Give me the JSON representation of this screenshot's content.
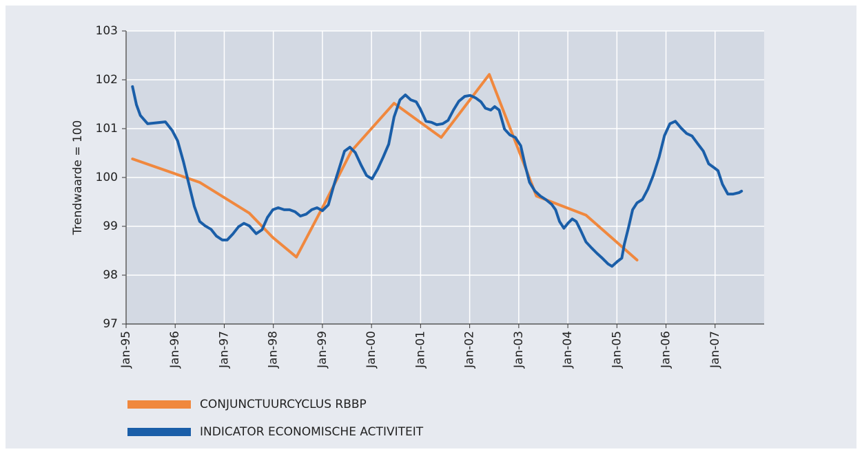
{
  "chart_data": {
    "type": "line",
    "ylabel": "Trendwaarde = 100",
    "xlim": [
      1995,
      2008
    ],
    "xticks": [
      {
        "value": 1995,
        "label": "Jan-95"
      },
      {
        "value": 1996,
        "label": "Jan-96"
      },
      {
        "value": 1997,
        "label": "Jan-97"
      },
      {
        "value": 1998,
        "label": "Jan-98"
      },
      {
        "value": 1999,
        "label": "Jan-99"
      },
      {
        "value": 2000,
        "label": "Jan-00"
      },
      {
        "value": 2001,
        "label": "Jan-01"
      },
      {
        "value": 2002,
        "label": "Jan-02"
      },
      {
        "value": 2003,
        "label": "Jan-03"
      },
      {
        "value": 2004,
        "label": "Jan-04"
      },
      {
        "value": 2005,
        "label": "Jan-05"
      },
      {
        "value": 2006,
        "label": "Jan-06"
      },
      {
        "value": 2007,
        "label": "Jan-07"
      }
    ],
    "ylim": [
      97,
      103
    ],
    "yticks": [
      97,
      98,
      99,
      100,
      101,
      102,
      103
    ],
    "grid": true,
    "legend": "bottom",
    "series": [
      {
        "name": "CONJUNCTUURCYCLUS RBBP",
        "color": "#f0883e",
        "x": [
          1995.13,
          1996.5,
          1997.51,
          1997.99,
          1998.47,
          1999.03,
          1999.59,
          2000.46,
          2001.42,
          2002.4,
          2003.36,
          2004.37,
          2005.41
        ],
        "values": [
          100.38,
          99.9,
          99.27,
          98.77,
          98.37,
          99.44,
          100.54,
          101.52,
          100.82,
          102.11,
          99.62,
          99.23,
          98.31
        ]
      },
      {
        "name": "INDICATOR ECONOMISCHE ACTIVITEIT",
        "color": "#1a5ea8",
        "x": [
          1995.13,
          1995.21,
          1995.29,
          1995.44,
          1995.8,
          1995.94,
          1996.05,
          1996.17,
          1996.28,
          1996.39,
          1996.5,
          1996.61,
          1996.73,
          1996.84,
          1996.96,
          1997.06,
          1997.18,
          1997.29,
          1997.4,
          1997.51,
          1997.65,
          1997.77,
          1997.88,
          1997.99,
          1998.1,
          1998.22,
          1998.33,
          1998.44,
          1998.55,
          1998.67,
          1998.78,
          1998.89,
          1999.0,
          1999.12,
          1999.23,
          1999.34,
          1999.45,
          1999.56,
          1999.67,
          1999.79,
          1999.9,
          2000.01,
          2000.13,
          2000.24,
          2000.35,
          2000.46,
          2000.58,
          2000.69,
          2000.8,
          2000.91,
          2000.99,
          2001.11,
          2001.22,
          2001.33,
          2001.45,
          2001.56,
          2001.67,
          2001.78,
          2001.9,
          2002.01,
          2002.12,
          2002.23,
          2002.32,
          2002.43,
          2002.51,
          2002.6,
          2002.71,
          2002.82,
          2002.93,
          2003.04,
          2003.13,
          2003.22,
          2003.33,
          2003.44,
          2003.55,
          2003.67,
          2003.75,
          2003.83,
          2003.92,
          2004.0,
          2004.09,
          2004.17,
          2004.26,
          2004.37,
          2004.48,
          2004.59,
          2004.71,
          2004.82,
          2004.9,
          2005.01,
          2005.1,
          2005.15,
          2005.24,
          2005.32,
          2005.41,
          2005.52,
          2005.63,
          2005.74,
          2005.86,
          2005.97,
          2006.08,
          2006.19,
          2006.31,
          2006.42,
          2006.53,
          2006.64,
          2006.76,
          2006.87,
          2006.98,
          2007.06,
          2007.15,
          2007.26,
          2007.37,
          2007.49,
          2007.54
        ],
        "values": [
          101.86,
          101.49,
          101.27,
          101.1,
          101.14,
          100.96,
          100.75,
          100.32,
          99.86,
          99.41,
          99.1,
          99.01,
          98.94,
          98.8,
          98.72,
          98.72,
          98.85,
          98.99,
          99.06,
          99.01,
          98.85,
          98.93,
          99.18,
          99.34,
          99.38,
          99.34,
          99.34,
          99.3,
          99.21,
          99.25,
          99.34,
          99.38,
          99.32,
          99.44,
          99.83,
          100.18,
          100.54,
          100.62,
          100.51,
          100.25,
          100.04,
          99.97,
          100.18,
          100.42,
          100.68,
          101.24,
          101.59,
          101.69,
          101.59,
          101.55,
          101.41,
          101.15,
          101.13,
          101.08,
          101.1,
          101.17,
          101.38,
          101.56,
          101.66,
          101.68,
          101.63,
          101.55,
          101.42,
          101.38,
          101.45,
          101.38,
          100.99,
          100.87,
          100.82,
          100.65,
          100.25,
          99.9,
          99.72,
          99.62,
          99.55,
          99.45,
          99.34,
          99.1,
          98.96,
          99.06,
          99.15,
          99.1,
          98.92,
          98.68,
          98.56,
          98.45,
          98.34,
          98.23,
          98.18,
          98.28,
          98.35,
          98.63,
          98.99,
          99.34,
          99.48,
          99.55,
          99.76,
          100.04,
          100.42,
          100.86,
          101.1,
          101.15,
          101.01,
          100.9,
          100.85,
          100.7,
          100.54,
          100.28,
          100.2,
          100.14,
          99.86,
          99.66,
          99.66,
          99.69,
          99.72
        ]
      }
    ]
  }
}
